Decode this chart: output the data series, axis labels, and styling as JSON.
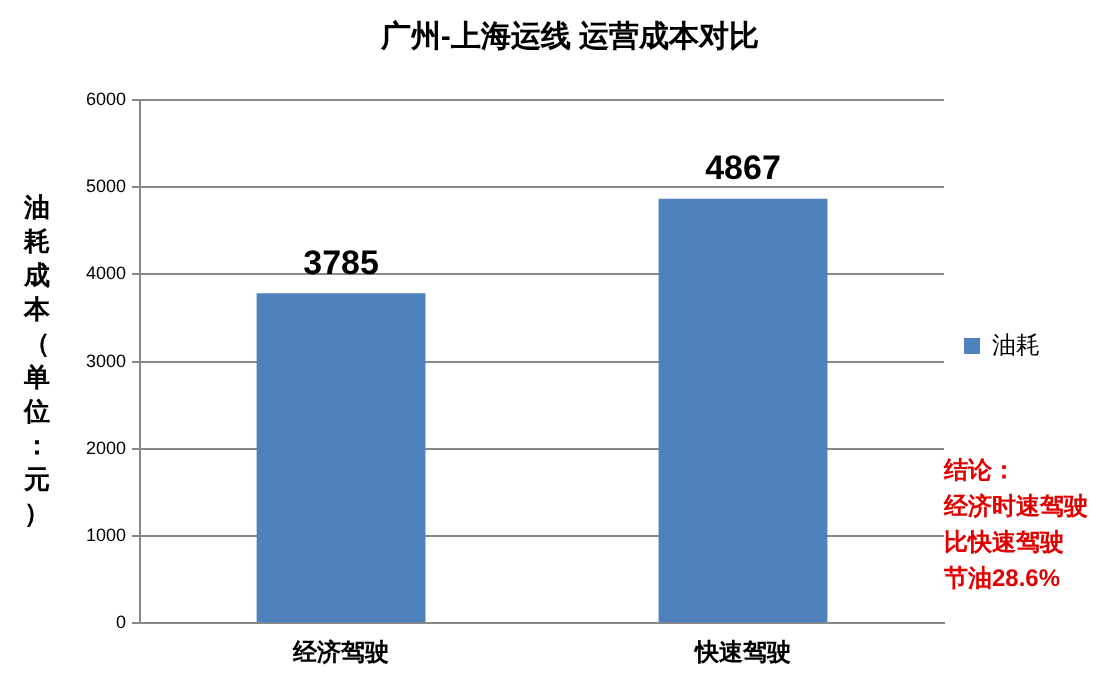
{
  "chart_data": {
    "type": "bar",
    "title": "广州-上海运线 运营成本对比",
    "ylabel": "油耗成本（单位：元）",
    "categories": [
      "经济驾驶",
      "快速驾驶"
    ],
    "series": [
      {
        "name": "油耗",
        "color": "#4f81bd",
        "values": [
          3785,
          4867
        ]
      }
    ],
    "ylim": [
      0,
      6000
    ],
    "yticks": [
      0,
      1000,
      2000,
      3000,
      4000,
      5000,
      6000
    ],
    "grid": "y",
    "legend": "right",
    "data_labels": true,
    "annotations": [
      "结论：",
      "经济时速驾驶",
      "比快速驾驶",
      "节油28.6%"
    ]
  }
}
